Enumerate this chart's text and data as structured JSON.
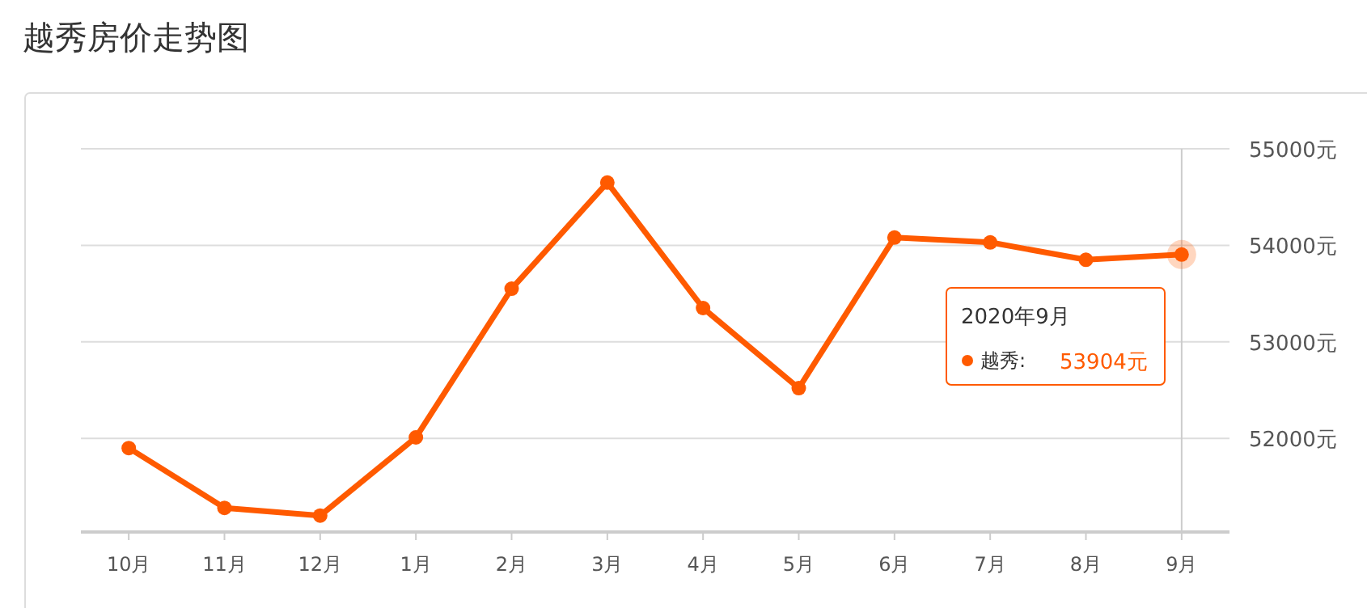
{
  "chart_data": {
    "type": "line",
    "title": "越秀房价走势图",
    "categories": [
      "10月",
      "11月",
      "12月",
      "1月",
      "2月",
      "3月",
      "4月",
      "5月",
      "6月",
      "7月",
      "8月",
      "9月"
    ],
    "series": [
      {
        "color": "#ff5a00",
        "values": [
          51900,
          51280,
          51200,
          52010,
          53550,
          54650,
          53350,
          52520,
          54080,
          54030,
          53850,
          53904
        ]
      }
    ],
    "ylim": [
      51030,
      55000
    ],
    "yticks": [
      {
        "value": 52000,
        "label": "52000元"
      },
      {
        "value": 53000,
        "label": "53000元"
      },
      {
        "value": 54000,
        "label": "54000元"
      },
      {
        "value": 55000,
        "label": "55000元"
      }
    ],
    "grid": "y",
    "marker": "circle",
    "line_style": "solid",
    "ref_lines": [
      {
        "axis": "x",
        "value": "9月",
        "color": "#cccccc"
      }
    ],
    "annotations": [
      "2020年9月",
      "越秀:",
      "53904元"
    ]
  }
}
